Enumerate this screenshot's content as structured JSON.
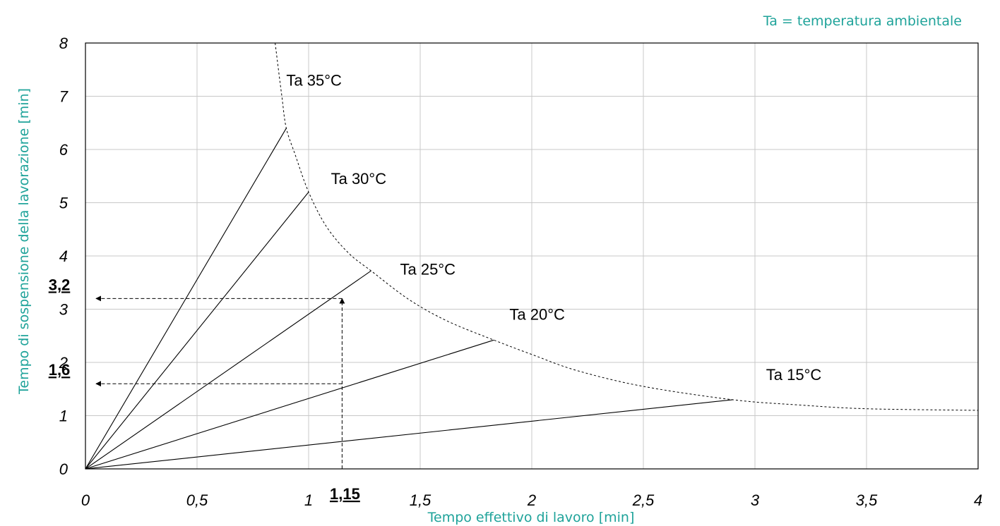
{
  "chart_data": {
    "type": "line",
    "xlabel": "Tempo effettivo di lavoro [min]",
    "ylabel": "Tempo di sospensione della lavorazione [min]",
    "note": "Ta = temperatura ambientale",
    "xlim": [
      0,
      4
    ],
    "ylim": [
      0,
      8
    ],
    "x_ticks": [
      {
        "value": 0,
        "label": "0"
      },
      {
        "value": 0.5,
        "label": "0,5"
      },
      {
        "value": 1,
        "label": "1"
      },
      {
        "value": 1.5,
        "label": "1,5"
      },
      {
        "value": 2,
        "label": "2"
      },
      {
        "value": 2.5,
        "label": "2,5"
      },
      {
        "value": 3,
        "label": "3"
      },
      {
        "value": 3.5,
        "label": "3,5"
      },
      {
        "value": 4,
        "label": "4"
      }
    ],
    "y_ticks": [
      {
        "value": 0,
        "label": "0"
      },
      {
        "value": 1,
        "label": "1"
      },
      {
        "value": 2,
        "label": "2"
      },
      {
        "value": 3,
        "label": "3"
      },
      {
        "value": 4,
        "label": "4"
      },
      {
        "value": 5,
        "label": "5"
      },
      {
        "value": 6,
        "label": "6"
      },
      {
        "value": 7,
        "label": "7"
      },
      {
        "value": 8,
        "label": "8"
      }
    ],
    "grid": true,
    "series": [
      {
        "name": "Ta 35°C",
        "points": [
          [
            0,
            0
          ],
          [
            0.9,
            6.4
          ]
        ],
        "label_at": [
          0.9,
          7.2
        ]
      },
      {
        "name": "Ta 30°C",
        "points": [
          [
            0,
            0
          ],
          [
            1.0,
            5.2
          ]
        ],
        "label_at": [
          1.1,
          5.35
        ]
      },
      {
        "name": "Ta 25°C",
        "points": [
          [
            0,
            0
          ],
          [
            1.28,
            3.72
          ]
        ],
        "label_at": [
          1.41,
          3.65
        ]
      },
      {
        "name": "Ta 20°C",
        "points": [
          [
            0,
            0
          ],
          [
            1.83,
            2.42
          ]
        ],
        "label_at": [
          1.9,
          2.8
        ]
      },
      {
        "name": "Ta 15°C",
        "points": [
          [
            0,
            0
          ],
          [
            2.9,
            1.3
          ]
        ],
        "label_at": [
          3.05,
          1.67
        ]
      }
    ],
    "boundary_curve": {
      "style": "dotted",
      "points": [
        [
          0.85,
          8.0
        ],
        [
          0.88,
          7.0
        ],
        [
          0.9,
          6.4
        ],
        [
          0.94,
          5.9
        ],
        [
          1.0,
          5.2
        ],
        [
          1.08,
          4.55
        ],
        [
          1.18,
          4.05
        ],
        [
          1.28,
          3.72
        ],
        [
          1.45,
          3.18
        ],
        [
          1.62,
          2.78
        ],
        [
          1.83,
          2.42
        ],
        [
          2.0,
          2.15
        ],
        [
          2.2,
          1.85
        ],
        [
          2.5,
          1.55
        ],
        [
          2.9,
          1.3
        ],
        [
          3.2,
          1.2
        ],
        [
          3.5,
          1.13
        ],
        [
          4.0,
          1.1
        ]
      ]
    },
    "reading_example": {
      "x_value": 1.15,
      "x_label": "1,15",
      "y_values": [
        {
          "value": 3.2,
          "label": "3,2"
        },
        {
          "value": 1.6,
          "label": "1,6"
        }
      ]
    }
  }
}
